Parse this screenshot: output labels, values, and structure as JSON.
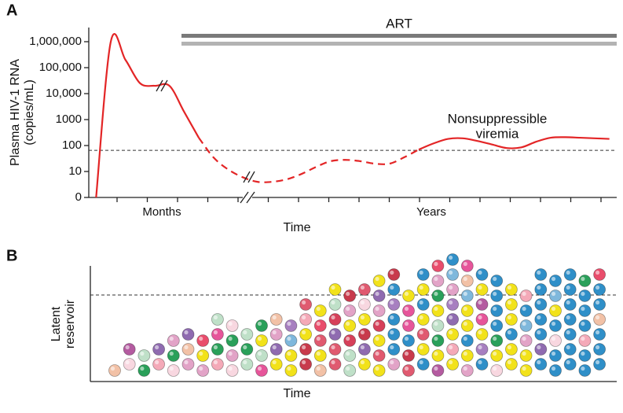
{
  "chart_data": [
    {
      "type": "line",
      "panel": "A",
      "ylabel": [
        "Plasma HIV-1 RNA",
        "(copies/mL)"
      ],
      "xlabel": "Time",
      "x_markers": [
        "Months",
        "Years"
      ],
      "art_label": "ART",
      "annotation": [
        "Nonsuppressible",
        "viremia"
      ],
      "log": true,
      "ylim": [
        0,
        3000000
      ],
      "yticks": [
        0,
        10,
        100,
        1000,
        {
          "value": 10000,
          "label": "10,000"
        },
        {
          "value": 100000,
          "label": "100,000"
        },
        {
          "value": 1000000,
          "label": "1,000,000"
        }
      ],
      "hline": 65,
      "categories": [
        null,
        null,
        null,
        null,
        null,
        null,
        null,
        null,
        null,
        null,
        null,
        null,
        null,
        null,
        null,
        null,
        null,
        null,
        null,
        null,
        null,
        null,
        null,
        null,
        null,
        null,
        null,
        null,
        null,
        null,
        null,
        null,
        null,
        null,
        null,
        null
      ],
      "series": [
        {
          "color": "#e32526",
          "style": "solid",
          "values": [
            0,
            1000000,
            200000,
            25000,
            20000,
            20000,
            2000,
            200,
            null,
            null,
            null,
            null,
            null,
            null,
            null,
            null,
            null,
            null,
            null,
            null,
            null,
            null,
            70,
            120,
            180,
            190,
            150,
            110,
            80,
            85,
            140,
            200,
            210,
            200,
            190,
            180
          ]
        },
        {
          "color": "#e32526",
          "style": "dashed",
          "values": [
            null,
            null,
            null,
            null,
            null,
            null,
            null,
            200,
            35,
            12,
            6,
            4,
            4,
            5,
            8,
            15,
            25,
            28,
            25,
            20,
            20,
            35,
            70,
            null,
            null,
            null,
            null,
            null,
            null,
            null,
            null,
            null,
            null,
            null,
            null,
            null
          ]
        }
      ]
    },
    {
      "type": "schematic",
      "panel": "B",
      "ylabel": [
        "Latent",
        "reservoir"
      ],
      "xlabel": "Time"
    }
  ]
}
